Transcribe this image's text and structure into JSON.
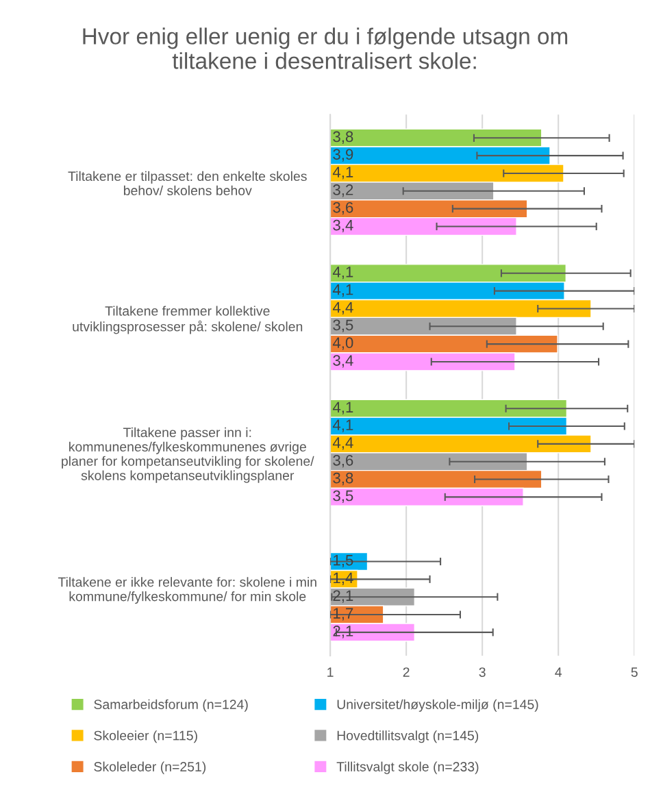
{
  "chart_data": {
    "type": "bar",
    "orientation": "horizontal",
    "title": "Hvor enig eller uenig er du i følgende utsagn om\ntiltakene i desentralisert skole:",
    "categories": [
      "Tiltakene er tilpasset: den enkelte skoles\nbehov/ skolens behov",
      "Tiltakene fremmer kollektive\nutviklingsprosesser på: skolene/ skolen",
      "Tiltakene passer inn i:\nkommunenes/fylkeskommunenes øvrige\nplaner for kompetanseutvikling for skolene/\nskolens kompetanseutviklingsplaner",
      "Tiltakene er ikke relevante for: skolene i min\nkommune/fylkeskommune/ for min skole"
    ],
    "series": [
      {
        "name": "Samarbeidsforum (n=124)",
        "color": "#92d050",
        "values": [
          3.78,
          4.1,
          4.11,
          null
        ],
        "errors": [
          0.89,
          0.85,
          0.8,
          null
        ],
        "value_labels": [
          "3,8",
          "4,1",
          "4,1",
          null
        ]
      },
      {
        "name": "Universitet/høyskole-miljø (n=145)",
        "color": "#00b0f0",
        "values": [
          3.89,
          4.08,
          4.11,
          1.49
        ],
        "errors": [
          0.96,
          0.92,
          0.76,
          [
            1,
            2.45
          ]
        ],
        "value_labels": [
          "3,9",
          "4,1",
          "4,1",
          "1,5"
        ]
      },
      {
        "name": "Skoleeier (n=115)",
        "color": "#ffc000",
        "values": [
          4.07,
          4.43,
          4.43,
          1.36
        ],
        "errors": [
          0.79,
          [
            3.73,
            5
          ],
          [
            3.73,
            5
          ],
          [
            1,
            2.31
          ]
        ],
        "value_labels": [
          "4,1",
          "4,4",
          "4,4",
          "1,4"
        ]
      },
      {
        "name": "Hovedtillitsvalgt (n=145)",
        "color": "#a5a5a5",
        "values": [
          3.15,
          3.45,
          3.59,
          2.11
        ],
        "errors": [
          1.19,
          1.14,
          1.02,
          1.09
        ],
        "value_labels": [
          "3,2",
          "3,5",
          "3,6",
          "2,1"
        ]
      },
      {
        "name": "Skoleleder (n=251)",
        "color": "#ed7d31",
        "values": [
          3.59,
          3.99,
          3.78,
          1.7
        ],
        "errors": [
          0.98,
          0.93,
          0.88,
          [
            1,
            2.71
          ]
        ],
        "value_labels": [
          "3,6",
          "4,0",
          "3,8",
          "1,7"
        ]
      },
      {
        "name": "Tillitsvalgt skole (n=233)",
        "color": "#ff99ff",
        "values": [
          3.45,
          3.43,
          3.54,
          2.11
        ],
        "errors": [
          1.05,
          1.1,
          1.03,
          1.03
        ],
        "value_labels": [
          "3,4",
          "3,4",
          "3,5",
          "2,1"
        ]
      }
    ],
    "xlim": [
      1,
      5
    ],
    "xticks": [
      1,
      2,
      3,
      4,
      5
    ],
    "grid": "x",
    "legend": "bottom"
  }
}
